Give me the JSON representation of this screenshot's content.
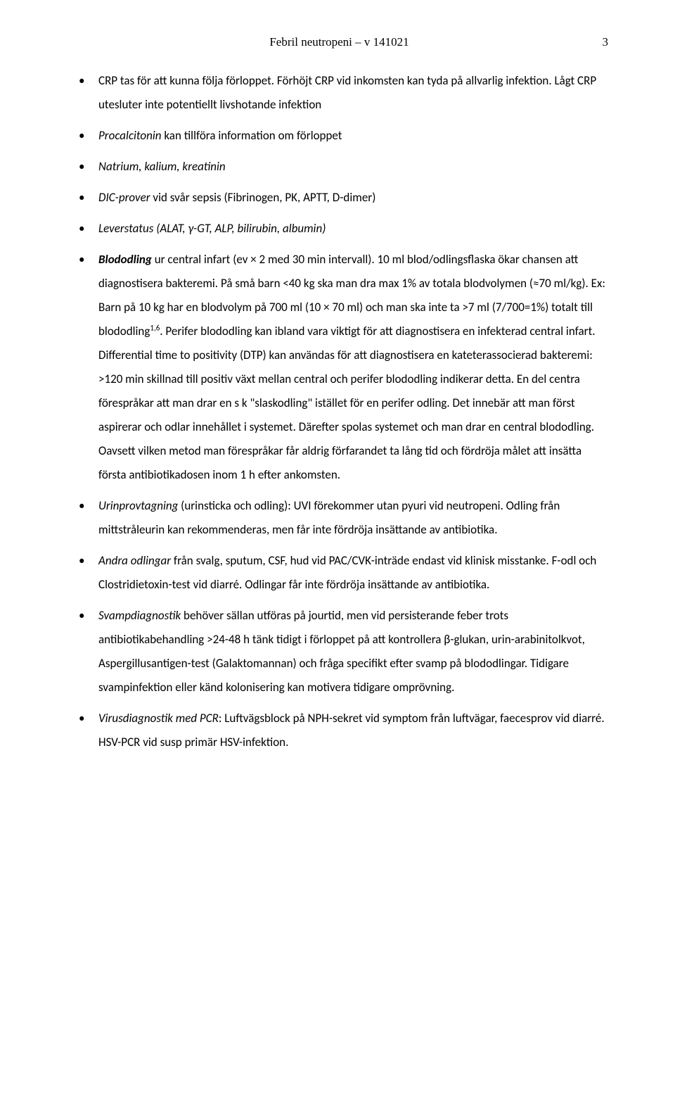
{
  "header": {
    "title": "Febril neutropeni – v 141021",
    "page_number": "3"
  },
  "bullets": {
    "b0": {
      "pre": "CRP tas för att kunna följa förloppet. Förhöjt CRP vid inkomsten kan tyda på allvarlig infektion. Lågt CRP utesluter inte potentiellt livshotande infektion"
    },
    "b1": {
      "lead": "Procalcitonin",
      "rest": " kan tillföra information om förloppet"
    },
    "b2": {
      "lead": "Natrium, kalium, kreatinin"
    },
    "b3": {
      "lead": "DIC-prover",
      "rest": " vid svår sepsis (Fibrinogen, PK, APTT, D-dimer)"
    },
    "b4": {
      "lead": "Leverstatus (ALAT, γ-GT, ALP, bilirubin, albumin)"
    },
    "b5": {
      "lead": "Blododling",
      "rest": " ur central infart (ev × 2 med 30 min intervall). 10 ml blod/odlingsflaska ökar chansen att diagnostisera bakteremi. På små barn <40 kg ska man dra max 1% av totala blodvolymen (≈70 ml/kg). Ex: Barn på 10 kg har en blodvolym på 700 ml (10 × 70 ml) och man ska inte ta >7 ml (7/700=1%) totalt till blododling",
      "sup": "1,6",
      "tail": ". Perifer blododling kan ibland vara viktigt för att diagnostisera en infekterad central infart. Differential time to positivity (DTP) kan användas för att diagnostisera en kateterassocierad bakteremi: >120 min skillnad till positiv växt mellan central och perifer blododling indikerar detta. En del centra förespråkar att man drar en s k \"slaskodling\" istället för en perifer odling. Det innebär att man först aspirerar och odlar innehållet i systemet. Därefter spolas systemet och man drar en central blododling. Oavsett vilken metod man förespråkar får aldrig förfarandet ta lång tid och fördröja målet att insätta första antibiotikadosen inom 1 h efter ankomsten."
    },
    "b6": {
      "lead": "Urinprovtagning",
      "rest": " (urinsticka och odling): UVI förekommer utan pyuri vid neutropeni. Odling från mittstråleurin kan rekommenderas, men får inte fördröja insättande av antibiotika."
    },
    "b7": {
      "lead": "Andra odlingar",
      "rest": " från svalg, sputum, CSF, hud vid PAC/CVK-inträde endast vid klinisk misstanke. F-odl och Clostridietoxin-test vid diarré. Odlingar får inte fördröja insättande av antibiotika."
    },
    "b8": {
      "lead": "Svampdiagnostik",
      "rest": " behöver sällan utföras på jourtid, men vid persisterande feber trots antibiotikabehandling >24-48 h tänk tidigt i förloppet på att kontrollera β-glukan, urin-arabinitolkvot, Aspergillusantigen-test (Galaktomannan) och fråga specifikt efter svamp på blododlingar. Tidigare svampinfektion eller känd kolonisering kan motivera tidigare omprövning."
    },
    "b9": {
      "lead": "Virusdiagnostik med PCR",
      "rest": ": Luftvägsblock på NPH-sekret vid symptom från luftvägar, faecesprov vid diarré. HSV-PCR vid susp primär HSV-infektion."
    }
  }
}
